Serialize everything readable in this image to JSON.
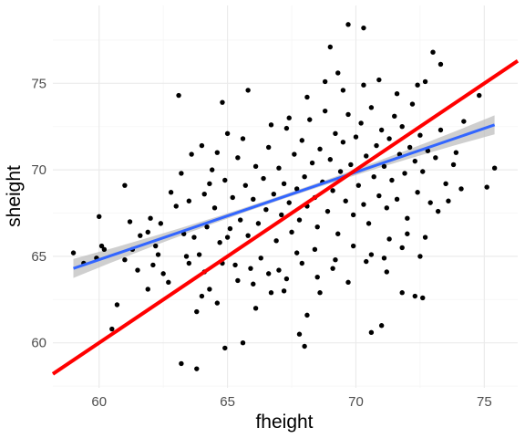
{
  "chart_data": {
    "type": "scatter",
    "title": "",
    "xlabel": "fheight",
    "ylabel": "sheight",
    "xlim": [
      58.2,
      76.3
    ],
    "ylim": [
      57.4,
      79.5
    ],
    "xticks": [
      60,
      65,
      70,
      75
    ],
    "yticks": [
      60,
      65,
      70,
      75
    ],
    "grid": true,
    "legend": "none",
    "colors": {
      "points": "#000000",
      "smooth_line": "#3366ff",
      "smooth_band": "#bfbfbf",
      "identity_line": "#ff0000",
      "grid_major": "#ebebeb",
      "grid_minor": "#f5f5f5"
    },
    "series": [
      {
        "type": "scatter",
        "values": [
          [
            59.0,
            65.2
          ],
          [
            59.4,
            64.6
          ],
          [
            59.9,
            64.9
          ],
          [
            60.0,
            67.3
          ],
          [
            60.1,
            65.6
          ],
          [
            60.5,
            60.8
          ],
          [
            60.7,
            62.2
          ],
          [
            61.0,
            69.1
          ],
          [
            61.0,
            64.8
          ],
          [
            61.3,
            65.4
          ],
          [
            61.5,
            64.2
          ],
          [
            61.6,
            66.2
          ],
          [
            61.9,
            63.1
          ],
          [
            61.9,
            66.4
          ],
          [
            62.1,
            64.5
          ],
          [
            62.3,
            65.1
          ],
          [
            62.5,
            64.0
          ],
          [
            62.7,
            63.5
          ],
          [
            63.1,
            74.3
          ],
          [
            63.2,
            58.8
          ],
          [
            63.8,
            58.5
          ],
          [
            63.5,
            64.6
          ],
          [
            63.8,
            61.8
          ],
          [
            64.0,
            62.7
          ],
          [
            64.3,
            63.1
          ],
          [
            64.6,
            62.3
          ],
          [
            64.8,
            73.9
          ],
          [
            65.0,
            72.1
          ],
          [
            64.9,
            59.7
          ],
          [
            65.6,
            60.0
          ],
          [
            65.8,
            74.6
          ],
          [
            66.1,
            62.0
          ],
          [
            66.7,
            62.9
          ],
          [
            67.3,
            63.7
          ],
          [
            67.8,
            60.5
          ],
          [
            68.0,
            59.8
          ],
          [
            68.1,
            61.6
          ],
          [
            68.6,
            62.9
          ],
          [
            69.0,
            77.1
          ],
          [
            69.3,
            75.6
          ],
          [
            69.7,
            78.4
          ],
          [
            70.3,
            78.2
          ],
          [
            70.6,
            60.6
          ],
          [
            71.0,
            61.0
          ],
          [
            71.2,
            64.1
          ],
          [
            71.8,
            62.9
          ],
          [
            72.3,
            62.7
          ],
          [
            72.6,
            62.6
          ],
          [
            72.7,
            75.1
          ],
          [
            73.0,
            76.8
          ],
          [
            73.3,
            76.1
          ],
          [
            73.9,
            71.0
          ],
          [
            74.2,
            72.8
          ],
          [
            74.8,
            74.3
          ],
          [
            75.1,
            69.0
          ],
          [
            75.4,
            70.1
          ],
          [
            60.2,
            65.4
          ],
          [
            62.0,
            67.2
          ],
          [
            62.4,
            66.9
          ],
          [
            63.0,
            67.9
          ],
          [
            63.3,
            66.3
          ],
          [
            63.5,
            68.2
          ],
          [
            63.7,
            66.1
          ],
          [
            63.9,
            65.1
          ],
          [
            64.1,
            68.6
          ],
          [
            64.2,
            66.7
          ],
          [
            64.4,
            70.0
          ],
          [
            64.5,
            67.8
          ],
          [
            64.7,
            65.8
          ],
          [
            64.9,
            69.4
          ],
          [
            65.1,
            66.6
          ],
          [
            65.2,
            68.4
          ],
          [
            65.4,
            70.7
          ],
          [
            65.5,
            67.1
          ],
          [
            65.7,
            69.1
          ],
          [
            65.8,
            66.2
          ],
          [
            66.0,
            68.3
          ],
          [
            66.1,
            70.2
          ],
          [
            66.2,
            66.9
          ],
          [
            66.4,
            69.5
          ],
          [
            66.5,
            67.7
          ],
          [
            66.6,
            71.3
          ],
          [
            66.8,
            68.6
          ],
          [
            66.9,
            65.9
          ],
          [
            67.0,
            70.1
          ],
          [
            67.1,
            67.4
          ],
          [
            67.2,
            69.2
          ],
          [
            67.3,
            72.4
          ],
          [
            67.4,
            68.1
          ],
          [
            67.5,
            66.4
          ],
          [
            67.6,
            70.9
          ],
          [
            67.7,
            68.9
          ],
          [
            67.8,
            67.1
          ],
          [
            67.9,
            71.7
          ],
          [
            68.0,
            69.6
          ],
          [
            68.1,
            67.9
          ],
          [
            68.2,
            72.9
          ],
          [
            68.3,
            70.4
          ],
          [
            68.4,
            68.4
          ],
          [
            68.5,
            66.7
          ],
          [
            68.6,
            71.2
          ],
          [
            68.7,
            69.3
          ],
          [
            68.8,
            73.4
          ],
          [
            68.9,
            67.6
          ],
          [
            69.0,
            70.6
          ],
          [
            69.1,
            68.8
          ],
          [
            69.2,
            72.1
          ],
          [
            69.3,
            66.3
          ],
          [
            69.4,
            69.9
          ],
          [
            69.5,
            71.6
          ],
          [
            69.6,
            68.2
          ],
          [
            69.7,
            73.2
          ],
          [
            69.8,
            70.3
          ],
          [
            69.9,
            67.4
          ],
          [
            70.0,
            71.9
          ],
          [
            70.1,
            69.1
          ],
          [
            70.2,
            72.7
          ],
          [
            70.3,
            68.0
          ],
          [
            70.4,
            70.8
          ],
          [
            70.5,
            66.9
          ],
          [
            70.6,
            73.6
          ],
          [
            70.7,
            69.6
          ],
          [
            70.8,
            71.4
          ],
          [
            70.9,
            68.5
          ],
          [
            71.0,
            72.3
          ],
          [
            71.1,
            70.2
          ],
          [
            71.2,
            67.8
          ],
          [
            71.3,
            71.8
          ],
          [
            71.4,
            69.4
          ],
          [
            71.5,
            73.1
          ],
          [
            71.6,
            68.3
          ],
          [
            71.7,
            70.9
          ],
          [
            71.8,
            72.5
          ],
          [
            71.9,
            69.8
          ],
          [
            72.0,
            67.2
          ],
          [
            72.1,
            71.3
          ],
          [
            72.2,
            73.8
          ],
          [
            72.3,
            70.5
          ],
          [
            72.4,
            68.7
          ],
          [
            72.5,
            72.0
          ],
          [
            72.6,
            69.9
          ],
          [
            72.8,
            71.1
          ],
          [
            72.9,
            68.1
          ],
          [
            73.1,
            70.7
          ],
          [
            73.3,
            72.3
          ],
          [
            73.5,
            69.2
          ],
          [
            73.8,
            70.3
          ],
          [
            74.1,
            68.9
          ],
          [
            63.2,
            69.8
          ],
          [
            63.6,
            70.9
          ],
          [
            64.0,
            71.4
          ],
          [
            64.3,
            69.2
          ],
          [
            64.6,
            71.0
          ],
          [
            65.0,
            66.1
          ],
          [
            65.3,
            64.5
          ],
          [
            65.6,
            71.8
          ],
          [
            65.9,
            64.3
          ],
          [
            66.3,
            64.9
          ],
          [
            66.7,
            72.6
          ],
          [
            67.0,
            64.2
          ],
          [
            67.4,
            73.0
          ],
          [
            67.7,
            65.2
          ],
          [
            68.1,
            74.2
          ],
          [
            68.4,
            65.4
          ],
          [
            68.8,
            75.1
          ],
          [
            69.2,
            64.8
          ],
          [
            69.5,
            74.6
          ],
          [
            69.9,
            65.6
          ],
          [
            70.3,
            74.9
          ],
          [
            70.6,
            65.1
          ],
          [
            70.9,
            75.2
          ],
          [
            71.3,
            66.0
          ],
          [
            71.6,
            74.4
          ],
          [
            72.0,
            66.3
          ],
          [
            72.4,
            74.9
          ],
          [
            72.7,
            66.1
          ],
          [
            61.2,
            67.0
          ],
          [
            62.2,
            65.6
          ],
          [
            62.8,
            68.7
          ],
          [
            63.4,
            65.0
          ],
          [
            64.1,
            64.1
          ],
          [
            64.8,
            64.6
          ],
          [
            65.4,
            63.6
          ],
          [
            66.0,
            63.4
          ],
          [
            66.6,
            64.0
          ],
          [
            67.2,
            63.0
          ],
          [
            67.9,
            64.6
          ],
          [
            68.5,
            63.8
          ],
          [
            69.1,
            64.3
          ],
          [
            69.7,
            63.5
          ],
          [
            70.4,
            64.7
          ],
          [
            71.1,
            64.9
          ],
          [
            71.8,
            65.5
          ],
          [
            72.5,
            65.0
          ],
          [
            73.2,
            67.6
          ],
          [
            73.6,
            68.2
          ]
        ]
      },
      {
        "type": "line",
        "name": "",
        "x": [
          59.0,
          75.4
        ],
        "values": [
          64.3,
          72.6
        ],
        "band_halfwidth_ends": 0.55,
        "band_halfwidth_mid": 0.12
      },
      {
        "type": "line",
        "name": "",
        "x": [
          58.2,
          76.3
        ],
        "values": [
          58.2,
          76.3
        ]
      }
    ]
  }
}
